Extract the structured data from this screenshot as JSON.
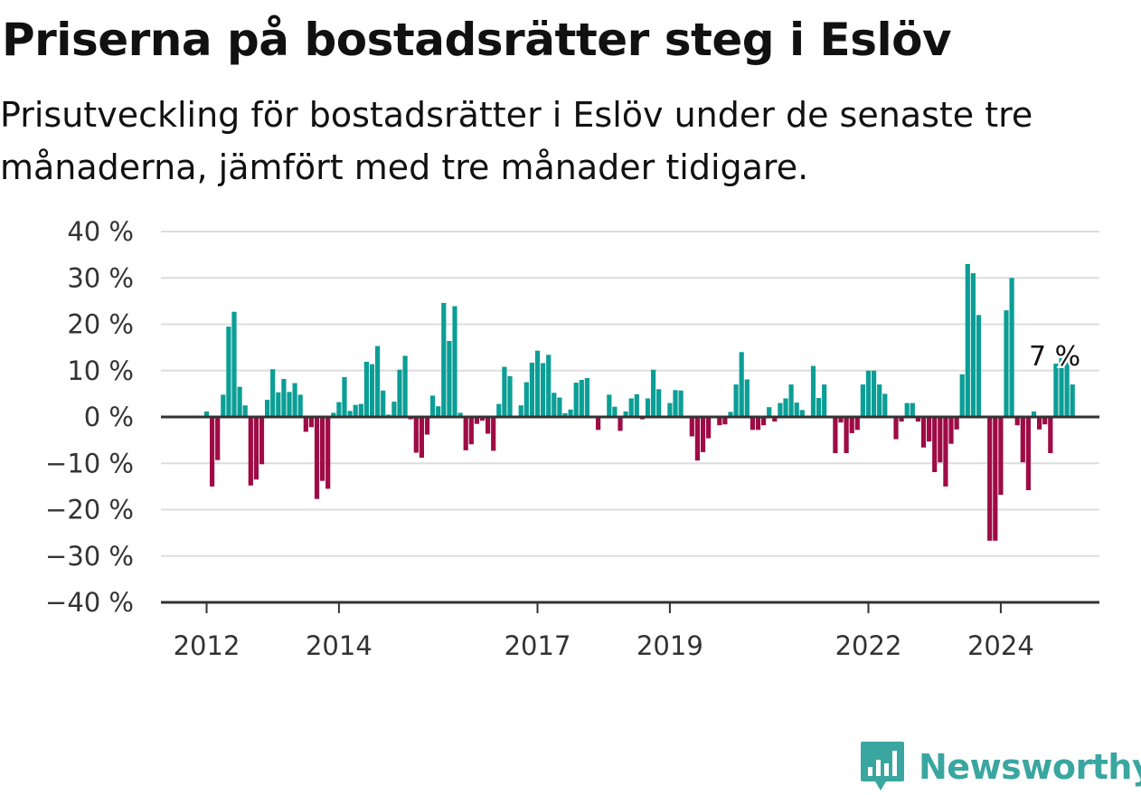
{
  "title": "Priserna på bostadsrätter steg i Eslöv",
  "subtitle": "Prisutveckling för bostadsrätter i Eslöv under de senaste tre månaderna, jämfört med tre månader tidigare.",
  "brand": {
    "name": "Newsworthy",
    "icon": "newsworthy-logo-icon"
  },
  "colors": {
    "positive": "#0b9e96",
    "negative": "#9e0b45",
    "grid": "#dddddd",
    "axis": "#333333",
    "brand": "#3aa6a0"
  },
  "chart_data": {
    "type": "bar",
    "title": "Priserna på bostadsrätter steg i Eslöv",
    "xlabel": "",
    "ylabel": "",
    "ylim": [
      -40,
      40
    ],
    "yticks": [
      {
        "value": 40,
        "label": "40 %"
      },
      {
        "value": 30,
        "label": "30 %"
      },
      {
        "value": 20,
        "label": "20 %"
      },
      {
        "value": 10,
        "label": "10 %"
      },
      {
        "value": 0,
        "label": "0 %"
      },
      {
        "value": -10,
        "label": "−10 %"
      },
      {
        "value": -20,
        "label": "−20 %"
      },
      {
        "value": -30,
        "label": "−30 %"
      },
      {
        "value": -40,
        "label": "−40 %"
      }
    ],
    "xticks": [
      {
        "index": 0,
        "label": "2012"
      },
      {
        "index": 24,
        "label": "2014"
      },
      {
        "index": 60,
        "label": "2017"
      },
      {
        "index": 84,
        "label": "2019"
      },
      {
        "index": 120,
        "label": "2022"
      },
      {
        "index": 144,
        "label": "2024"
      }
    ],
    "grid": true,
    "last_value_label": "7 %",
    "values": [
      1.2,
      -15,
      -9.3,
      4.8,
      19.5,
      22.7,
      6.5,
      2.5,
      -14.8,
      -13.5,
      -10.2,
      3.7,
      10.3,
      5.3,
      8.2,
      5.4,
      7.3,
      4.8,
      -3.2,
      -2.2,
      -17.7,
      -13.8,
      -15.5,
      0.9,
      3.2,
      8.6,
      1.3,
      2.6,
      2.8,
      11.9,
      11.4,
      15.3,
      5.7,
      0.5,
      3.3,
      10.2,
      13.2,
      -0.5,
      -7.7,
      -8.8,
      -3.8,
      4.6,
      2.3,
      24.6,
      16.4,
      23.9,
      0.9,
      -7.2,
      -5.9,
      -1.5,
      -0.8,
      -3.6,
      -7.3,
      2.8,
      10.8,
      8.8,
      0.2,
      2.5,
      7.5,
      11.7,
      14.3,
      11.6,
      13.4,
      5.2,
      4.2,
      0.8,
      1.6,
      7.4,
      8.0,
      8.4,
      0.3,
      -2.8,
      0.3,
      4.8,
      2.2,
      -3.0,
      1.2,
      4.0,
      4.9,
      -0.5,
      4.0,
      10.2,
      6.0,
      0.2,
      3.0,
      5.8,
      5.7,
      0.3,
      -4.2,
      -9.4,
      -7.6,
      -4.6,
      0.2,
      -1.8,
      -1.6,
      1.1,
      7.0,
      14.0,
      8.1,
      -2.8,
      -2.8,
      -1.8,
      2.1,
      -1.0,
      3.0,
      4.0,
      7.0,
      3.1,
      1.5,
      0.2,
      11.0,
      4.1,
      7.0,
      0.2,
      -7.8,
      -1.2,
      -7.8,
      -3.5,
      -2.8,
      7.0,
      10.0,
      10.0,
      7.0,
      5.0,
      0.2,
      -4.8,
      -1.0,
      3.0,
      3.0,
      -1.0,
      -6.6,
      -5.3,
      -11.9,
      -9.8,
      -15.0,
      -5.8,
      -2.7,
      9.2,
      33.0,
      31.0,
      22.0,
      -0.2,
      -26.7,
      -26.7,
      -16.8,
      23.0,
      30.0,
      -1.8,
      -9.8,
      -15.8,
      1.2,
      -2.7,
      -1.6,
      -7.8,
      11.5,
      13.0,
      14.5,
      7.0
    ]
  }
}
